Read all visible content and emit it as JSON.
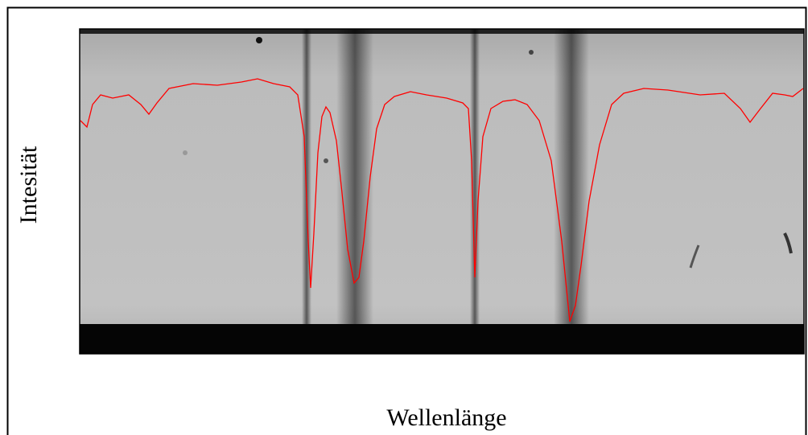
{
  "y_label": "Intesität",
  "x_label": "Wellenlänge"
}
